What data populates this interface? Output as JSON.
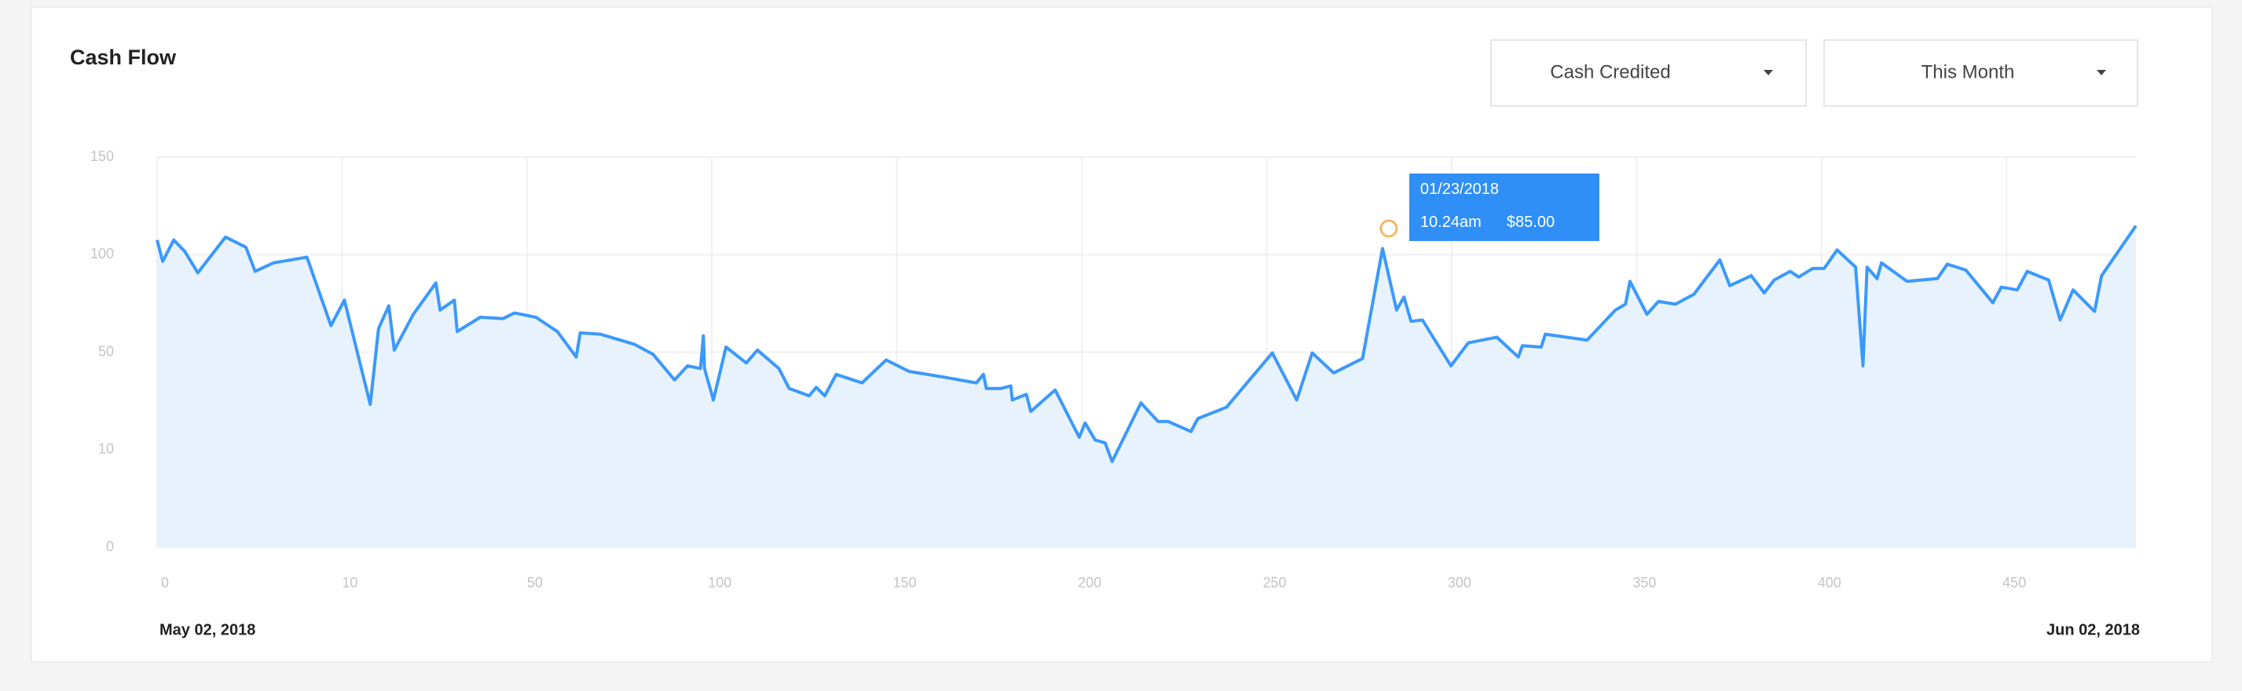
{
  "chart_data": {
    "type": "line",
    "title": "Cash Flow",
    "x": [
      0,
      0.3,
      0.9,
      1.5,
      2.2,
      3.7,
      4.8,
      5.3,
      6.3,
      8.1,
      9.4,
      10.5,
      16.1,
      17.9,
      20.1,
      21.3,
      25.4,
      30.3,
      31.2,
      34.3,
      34.9,
      39.9,
      44.8,
      47.3,
      52.4,
      58.2,
      63.3,
      64.4,
      69.8,
      79.1,
      84.1,
      89.9,
      93.4,
      96.9,
      97.7,
      98.0,
      100.4,
      103.8,
      109.3,
      112.3,
      118.1,
      120.9,
      126.3,
      128.2,
      130.5,
      133.6,
      140.6,
      147.1,
      153.3,
      162.6,
      171.5,
      173.4,
      174.2,
      178.1,
      180.8,
      181.2,
      185.0,
      186.2,
      192.8,
      199.3,
      200.9,
      203.6,
      206.3,
      208.2,
      216.0,
      220.6,
      223.3,
      229.5,
      231.4,
      239.1,
      251.5,
      258.1,
      262.3,
      268.1,
      275.9,
      281.3,
      285.1,
      287.1,
      289.0,
      292.1,
      299.8,
      304.5,
      312.2,
      318.0,
      319.1,
      324.2,
      325.3,
      336.6,
      344.3,
      347.0,
      348.2,
      352.8,
      355.9,
      360.5,
      365.5,
      372.5,
      375.2,
      381.0,
      384.5,
      387.2,
      391.5,
      393.8,
      397.6,
      400.7,
      404.2,
      409.2,
      411.2,
      412.3,
      415.0,
      416.2,
      423.1,
      431.3,
      434.0,
      439.0,
      442.5,
      446.3,
      448.6,
      452.9,
      455.6,
      461.4,
      464.5,
      468.0,
      473.8,
      475.7,
      485.0
    ],
    "values": [
      107.5,
      96.5,
      107.5,
      101.6,
      90.7,
      109.0,
      103.8,
      91.4,
      95.8,
      98.7,
      63.6,
      76.7,
      28.6,
      62.1,
      73.8,
      51.1,
      69.4,
      85.5,
      71.6,
      76.7,
      60.6,
      67.9,
      67.2,
      70.1,
      67.9,
      60.6,
      48.0,
      59.9,
      59.2,
      54.0,
      49.1,
      38.6,
      44.4,
      43.3,
      58.4,
      43.3,
      30.4,
      52.6,
      45.6,
      51.1,
      43.3,
      35.1,
      32.1,
      35.6,
      32.1,
      40.9,
      37.4,
      46.8,
      42.1,
      39.8,
      37.4,
      40.9,
      35.1,
      35.1,
      36.2,
      30.4,
      32.7,
      25.7,
      34.5,
      15.1,
      21.0,
      14.0,
      12.8,
      8.8,
      29.2,
      21.6,
      21.6,
      17.5,
      22.8,
      27.4,
      49.7,
      30.4,
      49.7,
      41.5,
      47.4,
      103.1,
      71.6,
      78.2,
      65.8,
      66.5,
      44.4,
      54.8,
      57.7,
      48.0,
      53.3,
      52.6,
      59.2,
      56.2,
      71.6,
      74.6,
      86.3,
      69.4,
      76.0,
      74.6,
      79.7,
      97.3,
      84.1,
      89.2,
      80.4,
      87.0,
      91.4,
      88.5,
      92.9,
      92.9,
      102.4,
      93.6,
      44.4,
      93.6,
      87.7,
      95.8,
      86.3,
      87.7,
      95.1,
      92.1,
      84.1,
      75.3,
      83.3,
      81.9,
      91.4,
      87.0,
      66.5,
      81.9,
      70.9,
      89.2,
      114.8
    ],
    "color": "#3b99fc",
    "fill_color": "#e8f2fd",
    "xlim": [
      0,
      485
    ],
    "xticks": [
      0,
      10,
      50,
      100,
      150,
      200,
      250,
      300,
      350,
      400,
      450
    ],
    "ylim": [
      0,
      150
    ],
    "yticks": [
      0,
      10,
      50,
      100,
      150
    ],
    "grid": true,
    "date_range": {
      "start": "May 02, 2018",
      "end": "Jun 02, 2018"
    },
    "tooltip": {
      "date": "01/23/2018",
      "time": "10.24am",
      "amount": "$85.00",
      "x": 283.0,
      "y": 113.4,
      "color": "#f5b66a"
    }
  },
  "controls": {
    "dropdowns": [
      "Cash Credited",
      "This Month"
    ]
  }
}
